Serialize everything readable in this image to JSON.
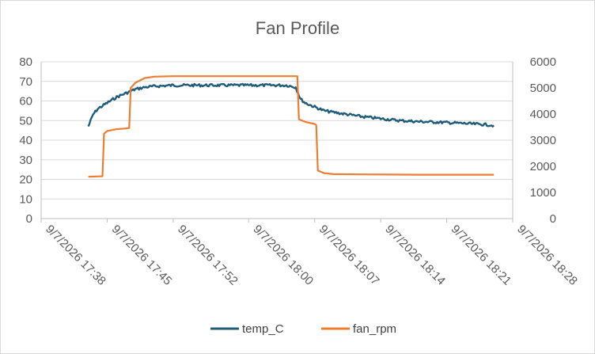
{
  "chart_data": {
    "type": "line",
    "title": "Fan Profile",
    "xlabel": "",
    "ylabel": "",
    "x_axis": {
      "type": "datetime",
      "ticks": [
        "9/7/2026 17:38",
        "9/7/2026 17:45",
        "9/7/2026 17:52",
        "9/7/2026 18:00",
        "9/7/2026 18:07",
        "9/7/2026 18:14",
        "9/7/2026 18:21",
        "9/7/2026 18:28"
      ],
      "range": [
        "9/7/2026 17:38",
        "9/7/2026 18:28"
      ]
    },
    "y_axis_left": {
      "ticks": [
        "0",
        "10",
        "20",
        "30",
        "40",
        "50",
        "60",
        "70",
        "80"
      ],
      "ylim": [
        0,
        80
      ]
    },
    "y_axis_right": {
      "ticks": [
        "0",
        "1000",
        "2000",
        "3000",
        "4000",
        "5000",
        "6000"
      ],
      "ylim": [
        0,
        6000
      ]
    },
    "grid": "horizontal",
    "legend_position": "bottom",
    "series": [
      {
        "name": "temp_C",
        "axis": "left",
        "color": "#1f5c7a",
        "points": [
          [
            "9/7/2026 17:43",
            47
          ],
          [
            "9/7/2026 17:43:30",
            53
          ],
          [
            "9/7/2026 17:44",
            56
          ],
          [
            "9/7/2026 17:45",
            59
          ],
          [
            "9/7/2026 17:46",
            62
          ],
          [
            "9/7/2026 17:47",
            64
          ],
          [
            "9/7/2026 17:48",
            66
          ],
          [
            "9/7/2026 17:49",
            67
          ],
          [
            "9/7/2026 17:50",
            67.5
          ],
          [
            "9/7/2026 17:52",
            68
          ],
          [
            "9/7/2026 17:55",
            68
          ],
          [
            "9/7/2026 17:58",
            68
          ],
          [
            "9/7/2026 18:00",
            68
          ],
          [
            "9/7/2026 18:02",
            68
          ],
          [
            "9/7/2026 18:04",
            68
          ],
          [
            "9/7/2026 18:05",
            67
          ],
          [
            "9/7/2026 18:05:30",
            61
          ],
          [
            "9/7/2026 18:06",
            59
          ],
          [
            "9/7/2026 18:07",
            57
          ],
          [
            "9/7/2026 18:08",
            55
          ],
          [
            "9/7/2026 18:10",
            53.5
          ],
          [
            "9/7/2026 18:12",
            52
          ],
          [
            "9/7/2026 18:14",
            51
          ],
          [
            "9/7/2026 18:16",
            50
          ],
          [
            "9/7/2026 18:18",
            49.5
          ],
          [
            "9/7/2026 18:21",
            49
          ],
          [
            "9/7/2026 18:23",
            48.5
          ],
          [
            "9/7/2026 18:25",
            48
          ],
          [
            "9/7/2026 18:26",
            47.5
          ]
        ]
      },
      {
        "name": "fan_rpm",
        "axis": "right",
        "color": "#ed7d31",
        "points": [
          [
            "9/7/2026 17:43",
            1600
          ],
          [
            "9/7/2026 17:44:30",
            1620
          ],
          [
            "9/7/2026 17:44:40",
            3250
          ],
          [
            "9/7/2026 17:45",
            3350
          ],
          [
            "9/7/2026 17:46",
            3420
          ],
          [
            "9/7/2026 17:47",
            3450
          ],
          [
            "9/7/2026 17:47:20",
            3470
          ],
          [
            "9/7/2026 17:47:30",
            5000
          ],
          [
            "9/7/2026 17:48",
            5200
          ],
          [
            "9/7/2026 17:49",
            5380
          ],
          [
            "9/7/2026 17:50",
            5430
          ],
          [
            "9/7/2026 17:52",
            5450
          ],
          [
            "9/7/2026 17:58",
            5450
          ],
          [
            "9/7/2026 18:04",
            5450
          ],
          [
            "9/7/2026 18:05:10",
            5450
          ],
          [
            "9/7/2026 18:05:20",
            3800
          ],
          [
            "9/7/2026 18:06",
            3700
          ],
          [
            "9/7/2026 18:07",
            3620
          ],
          [
            "9/7/2026 18:07:10",
            3580
          ],
          [
            "9/7/2026 18:07:20",
            1840
          ],
          [
            "9/7/2026 18:08",
            1740
          ],
          [
            "9/7/2026 18:09",
            1700
          ],
          [
            "9/7/2026 18:12",
            1690
          ],
          [
            "9/7/2026 18:18",
            1680
          ],
          [
            "9/7/2026 18:26",
            1680
          ]
        ]
      }
    ]
  }
}
